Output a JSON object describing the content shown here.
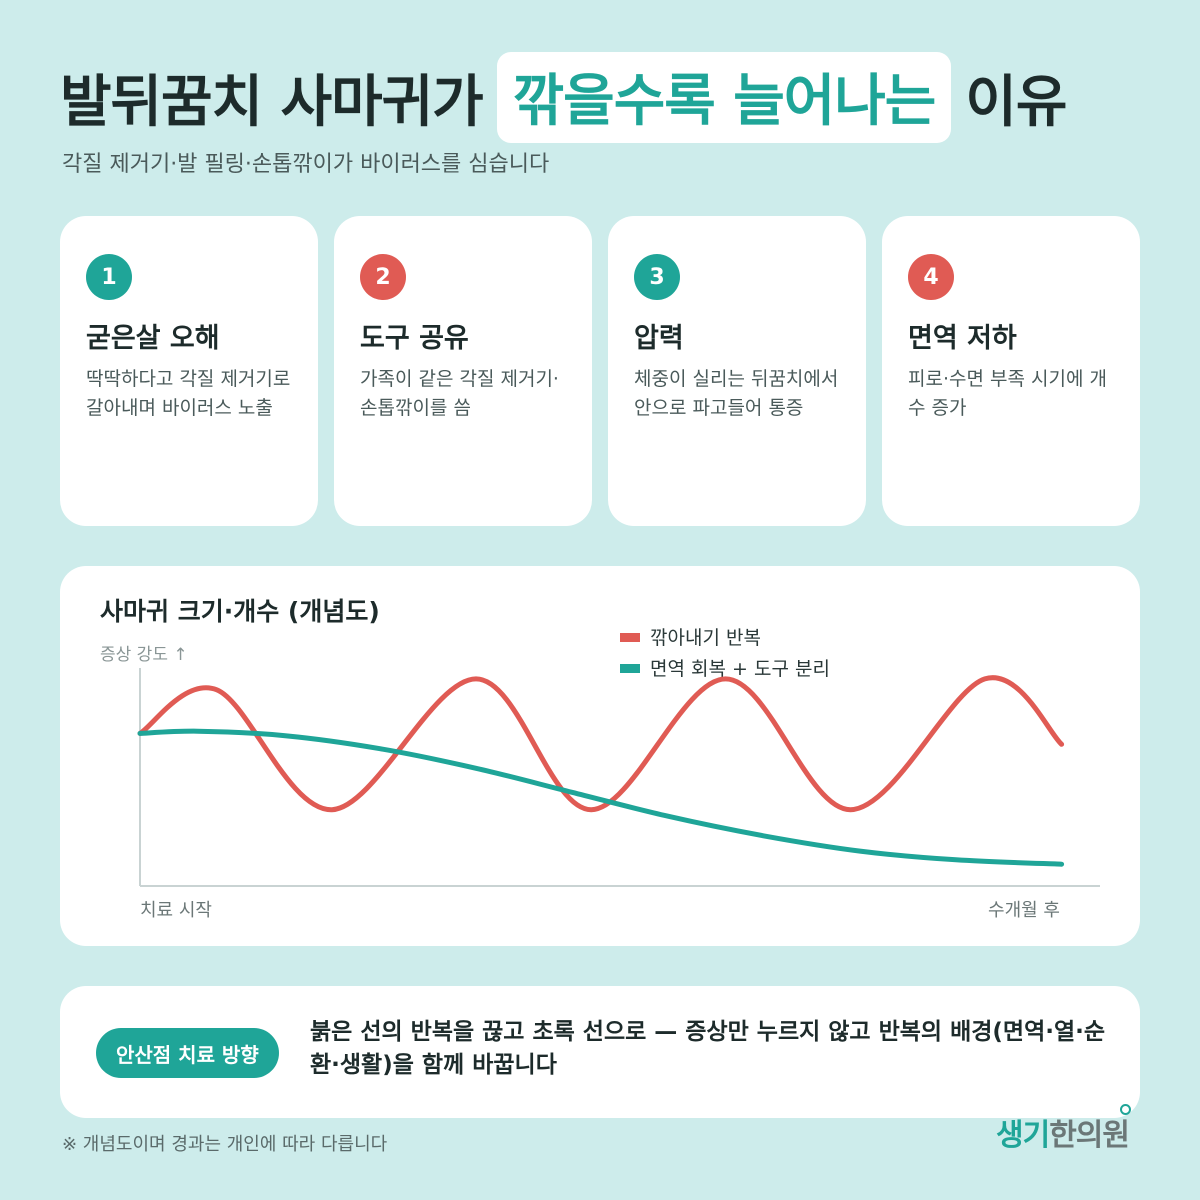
{
  "header": {
    "title_before": "발뒤꿈치 사마귀가",
    "title_highlight": "깎을수록 늘어나는",
    "title_after": "이유",
    "subtitle": "각질 제거기·발 필링·손톱깎이가 바이러스를 심습니다"
  },
  "cards": [
    {
      "number": "1",
      "title": "굳은살 오해",
      "desc": "딱딱하다고 각질 제거기로 갈아내며 바이러스 노출",
      "color": "#1fa598"
    },
    {
      "number": "2",
      "title": "도구 공유",
      "desc": "가족이 같은 각질 제거기·손톱깎이를 씀",
      "color": "#e05b54"
    },
    {
      "number": "3",
      "title": "압력",
      "desc": "체중이 실리는 뒤꿈치에서 안으로 파고들어 통증",
      "color": "#1fa598"
    },
    {
      "number": "4",
      "title": "면역 저하",
      "desc": "피로·수면 부족 시기에 개수 증가",
      "color": "#e05b54"
    }
  ],
  "chart": {
    "title": "사마귀 크기·개수 (개념도)",
    "ylabel": "증상 강도 ↑",
    "x_start_label": "치료 시작",
    "x_end_label": "수개월 후"
  },
  "chart_data": {
    "type": "line",
    "title": "사마귀 크기·개수 (개념도)",
    "ylabel": "증상 강도 ↑",
    "x_tick_labels": [
      "치료 시작",
      "수개월 후"
    ],
    "xlim": [
      0,
      1
    ],
    "ylim": [
      0,
      1
    ],
    "grid": false,
    "legend": "top-center",
    "series": [
      {
        "name": "깎아내기 반복",
        "color": "#e05b54",
        "x": [
          0,
          0.08,
          0.2,
          0.35,
          0.47,
          0.61,
          0.74,
          0.88,
          0.96
        ],
        "y": [
          0.7,
          0.9,
          0.35,
          0.95,
          0.35,
          0.95,
          0.35,
          0.95,
          0.65
        ]
      },
      {
        "name": "면역 회복 + 도구 분리",
        "color": "#1fa598",
        "x": [
          0,
          0.06,
          0.15,
          0.25,
          0.35,
          0.45,
          0.55,
          0.65,
          0.75,
          0.85,
          0.96
        ],
        "y": [
          0.7,
          0.71,
          0.69,
          0.63,
          0.54,
          0.43,
          0.32,
          0.23,
          0.16,
          0.12,
          0.1
        ]
      }
    ]
  },
  "bottom": {
    "badge": "안산점 치료 방향",
    "text": "붉은 선의 반복을 끊고 초록 선으로 — 증상만 누르지 않고 반복의 배경(면역·열·순환·생활)을 함께 바꿉니다"
  },
  "footnote": "※ 개념도이며 경과는 개인에 따라 다릅니다",
  "logo": {
    "part1": "생기",
    "part2": "한의원"
  }
}
